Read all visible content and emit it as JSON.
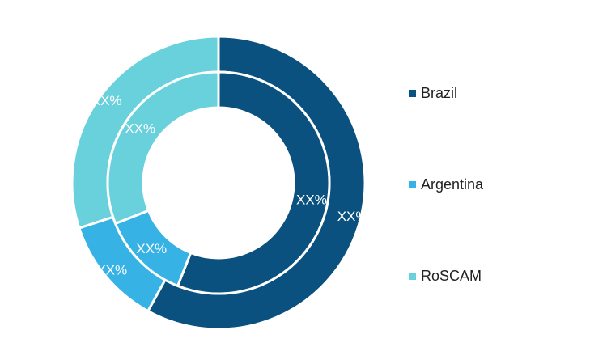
{
  "chart_data": {
    "type": "pie",
    "title": "",
    "legend_position": "right",
    "categories": [
      "Brazil",
      "Argentina",
      "RoSCAM"
    ],
    "colors": {
      "Brazil": "#0a517f",
      "Argentina": "#36b3e4",
      "RoSCAM": "#69d1dc"
    },
    "series": [
      {
        "ring": "outer",
        "values": [
          58,
          12,
          30
        ],
        "labels": [
          "XX%",
          "XX%",
          "XX%"
        ]
      },
      {
        "ring": "inner",
        "values": [
          56,
          13,
          31
        ],
        "labels": [
          "XX%",
          "XX%",
          "XX%"
        ]
      }
    ]
  }
}
